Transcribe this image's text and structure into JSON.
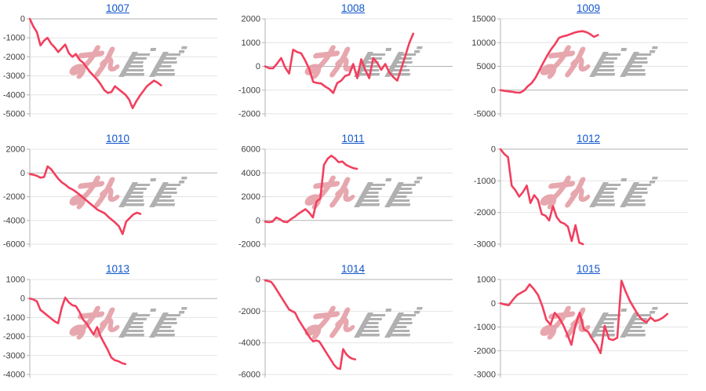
{
  "page": {
    "background": "#ffffff",
    "description": "3x3 grid of daily slot-machine profit line charts, each titled with a linked machine number, with min-repo watermark"
  },
  "styles": {
    "line_color": "#f23f5e",
    "grid_color": "#e4e4e4",
    "zero_line_color": "#b3b3b3",
    "axis_color": "#b3b3b3",
    "tick_label_color": "#3d3d3d",
    "title_link_color": "#1155cc",
    "watermark_pink": "#e49ba3",
    "watermark_gray": "#a8a8a8"
  },
  "watermark": {
    "name": "minrepo-logo"
  },
  "chart_data": [
    {
      "type": "line",
      "title": "1007",
      "ylim": [
        -5000,
        0
      ],
      "yticks": [
        0,
        -1000,
        -2000,
        -3000,
        -4000,
        -5000
      ],
      "span": 0.7,
      "values": [
        0,
        -400,
        -700,
        -1400,
        -1150,
        -1000,
        -1300,
        -1500,
        -1750,
        -1550,
        -1350,
        -1800,
        -2000,
        -1850,
        -2150,
        -2300,
        -2550,
        -2800,
        -3000,
        -3200,
        -3450,
        -3750,
        -3900,
        -3850,
        -3550,
        -3700,
        -3850,
        -4000,
        -4250,
        -4700,
        -4350,
        -4050,
        -3800,
        -3550,
        -3400,
        -3250,
        -3350,
        -3500
      ]
    },
    {
      "type": "line",
      "title": "1008",
      "ylim": [
        -2000,
        2000
      ],
      "yticks": [
        2000,
        1000,
        0,
        -1000,
        -2000
      ],
      "span": 0.79,
      "values": [
        0,
        -80,
        -80,
        120,
        350,
        -50,
        -300,
        700,
        600,
        550,
        250,
        -100,
        -650,
        -700,
        -720,
        -850,
        -950,
        -1120,
        -700,
        -600,
        -400,
        -350,
        100,
        -500,
        300,
        -150,
        -500,
        350,
        150,
        -150,
        100,
        -250,
        -450,
        -600,
        -100,
        430,
        975,
        1380
      ]
    },
    {
      "type": "line",
      "title": "1009",
      "ylim": [
        -5000,
        15000
      ],
      "yticks": [
        15000,
        10000,
        5000,
        0,
        -5000
      ],
      "span": 0.52,
      "values": [
        0,
        -150,
        -250,
        -350,
        -500,
        -550,
        -100,
        800,
        1500,
        2600,
        4200,
        5800,
        7300,
        8600,
        9700,
        11000,
        11300,
        11500,
        11800,
        12100,
        12300,
        12400,
        12200,
        11800,
        11200,
        11600
      ]
    },
    {
      "type": "line",
      "title": "1010",
      "ylim": [
        -6000,
        2000
      ],
      "yticks": [
        2000,
        0,
        -2000,
        -4000,
        -6000
      ],
      "span": 0.59,
      "values": [
        -100,
        -150,
        -250,
        -400,
        -350,
        550,
        300,
        -100,
        -500,
        -800,
        -1000,
        -1250,
        -1400,
        -1600,
        -1850,
        -2100,
        -2350,
        -2600,
        -2850,
        -3100,
        -3250,
        -3400,
        -3700,
        -3950,
        -4200,
        -4500,
        -5150,
        -4100,
        -3800,
        -3500,
        -3350,
        -3450
      ]
    },
    {
      "type": "line",
      "title": "1011",
      "ylim": [
        -2000,
        6000
      ],
      "yticks": [
        6000,
        4000,
        2000,
        0,
        -2000
      ],
      "span": 0.49,
      "values": [
        -100,
        -150,
        -100,
        250,
        100,
        -100,
        -150,
        100,
        300,
        550,
        750,
        950,
        650,
        250,
        1600,
        1840,
        4680,
        5190,
        5450,
        5230,
        4900,
        4960,
        4680,
        4530,
        4400,
        4350
      ]
    },
    {
      "type": "line",
      "title": "1012",
      "ylim": [
        -3000,
        0
      ],
      "yticks": [
        0,
        -1000,
        -2000,
        -3000
      ],
      "span": 0.44,
      "values": [
        0,
        -150,
        -250,
        -1150,
        -1300,
        -1500,
        -1350,
        -1150,
        -1700,
        -1450,
        -1600,
        -2050,
        -2100,
        -2250,
        -1800,
        -2150,
        -2300,
        -2350,
        -2450,
        -2900,
        -2400,
        -2950,
        -3000
      ]
    },
    {
      "type": "line",
      "title": "1013",
      "ylim": [
        -4000,
        1000
      ],
      "yticks": [
        1000,
        0,
        -1000,
        -2000,
        -3000,
        -4000
      ],
      "span": 0.51,
      "values": [
        0,
        -50,
        -150,
        -600,
        -750,
        -900,
        -1050,
        -1200,
        -1300,
        -500,
        50,
        -200,
        -350,
        -400,
        -700,
        -1100,
        -1300,
        -1600,
        -1900,
        -1500,
        -2000,
        -2350,
        -2700,
        -3100,
        -3250,
        -3300,
        -3400,
        -3450
      ]
    },
    {
      "type": "line",
      "title": "1014",
      "ylim": [
        -6000,
        0
      ],
      "yticks": [
        0,
        -2000,
        -4000,
        -6000
      ],
      "span": 0.48,
      "values": [
        -50,
        -100,
        -150,
        -400,
        -700,
        -1000,
        -1300,
        -1600,
        -1900,
        -2000,
        -2100,
        -2500,
        -2800,
        -3100,
        -3400,
        -3700,
        -3900,
        -3850,
        -3900,
        -4200,
        -4500,
        -4800,
        -5100,
        -5400,
        -5600,
        -5650,
        -4400,
        -4700,
        -4900,
        -5000,
        -5050
      ]
    },
    {
      "type": "line",
      "title": "1015",
      "ylim": [
        -3000,
        1000
      ],
      "yticks": [
        1000,
        0,
        -1000,
        -2000,
        -3000
      ],
      "span": 0.89,
      "values": [
        0,
        -50,
        -80,
        150,
        350,
        450,
        550,
        800,
        600,
        350,
        -100,
        -700,
        -900,
        -400,
        -600,
        -900,
        -1300,
        -1750,
        -900,
        -400,
        -1100,
        -1200,
        -1500,
        -1750,
        -2100,
        -950,
        -1500,
        -1550,
        -1450,
        950,
        500,
        100,
        -200,
        -500,
        -700,
        -800,
        -600,
        -750,
        -700,
        -600,
        -450
      ]
    }
  ]
}
